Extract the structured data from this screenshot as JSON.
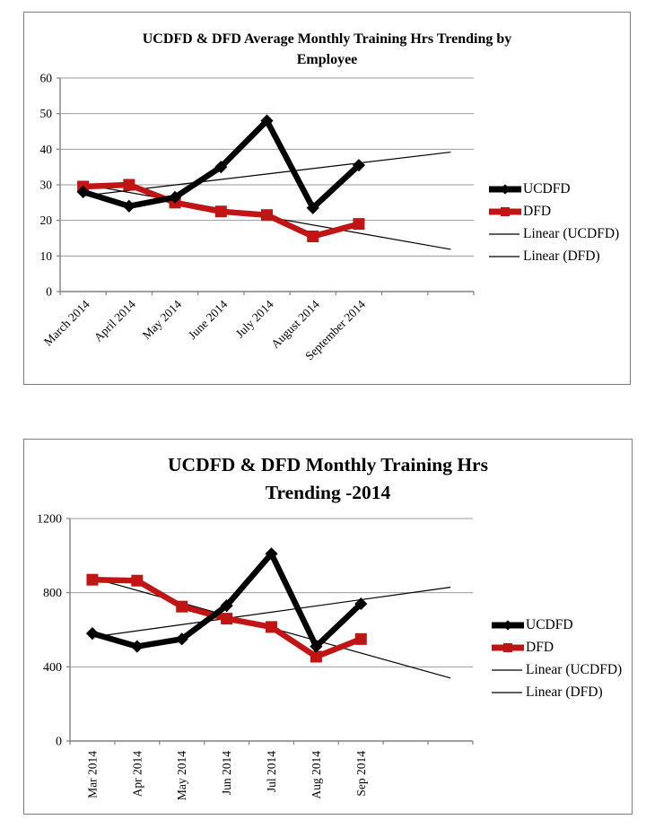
{
  "page": {
    "background": "#FFFFFF"
  },
  "chart_data": [
    {
      "type": "line",
      "title": "UCDFD & DFD Average Monthly Training Hrs Trending by Employee",
      "title_lines": [
        "UCDFD & DFD Average Monthly Training Hrs Trending by",
        "Employee"
      ],
      "categories": [
        "March 2014",
        "April 2014",
        "May 2014",
        "June 2014",
        "July 2014",
        "August 2014",
        "September 2014"
      ],
      "series": [
        {
          "name": "UCDFD",
          "values": [
            28,
            24,
            26.5,
            35,
            48,
            23.5,
            35.5
          ],
          "color": "#000000",
          "marker": "diamond"
        },
        {
          "name": "DFD",
          "values": [
            29.5,
            30,
            25,
            22.5,
            21.5,
            15.5,
            19
          ],
          "color": "#C11414",
          "marker": "square"
        }
      ],
      "trendlines": [
        {
          "name": "Linear (UCDFD)",
          "series": "UCDFD",
          "color": "#000000"
        },
        {
          "name": "Linear (DFD)",
          "series": "DFD",
          "color": "#000000"
        }
      ],
      "trend_forward_periods": 2,
      "ylim": [
        0,
        60
      ],
      "ytick_step": 10,
      "xlabel_rotation": -45,
      "grid": true,
      "legend_position": "right",
      "grid_color": "#9B9B9B",
      "axis_color": "#808080"
    },
    {
      "type": "line",
      "title": "UCDFD & DFD Monthly Training Hrs Trending -2014",
      "title_lines": [
        "UCDFD & DFD Monthly Training Hrs",
        "Trending -2014"
      ],
      "categories": [
        "Mar 2014",
        "Apr 2014",
        "May 2014",
        "Jun 2014",
        "Jul 2014",
        "Aug 2014",
        "Sep 2014"
      ],
      "series": [
        {
          "name": "UCDFD",
          "values": [
            580,
            510,
            550,
            730,
            1010,
            510,
            740
          ],
          "color": "#000000",
          "marker": "diamond"
        },
        {
          "name": "DFD",
          "values": [
            870,
            865,
            725,
            660,
            615,
            455,
            550
          ],
          "color": "#C11414",
          "marker": "square"
        }
      ],
      "trendlines": [
        {
          "name": "Linear (UCDFD)",
          "series": "UCDFD",
          "color": "#000000"
        },
        {
          "name": "Linear (DFD)",
          "series": "DFD",
          "color": "#000000"
        }
      ],
      "trend_forward_periods": 2,
      "ylim": [
        0,
        1200
      ],
      "ytick_step": 400,
      "xlabel_rotation": -90,
      "grid": true,
      "legend_position": "right",
      "grid_color": "#9B9B9B",
      "axis_color": "#808080"
    }
  ]
}
